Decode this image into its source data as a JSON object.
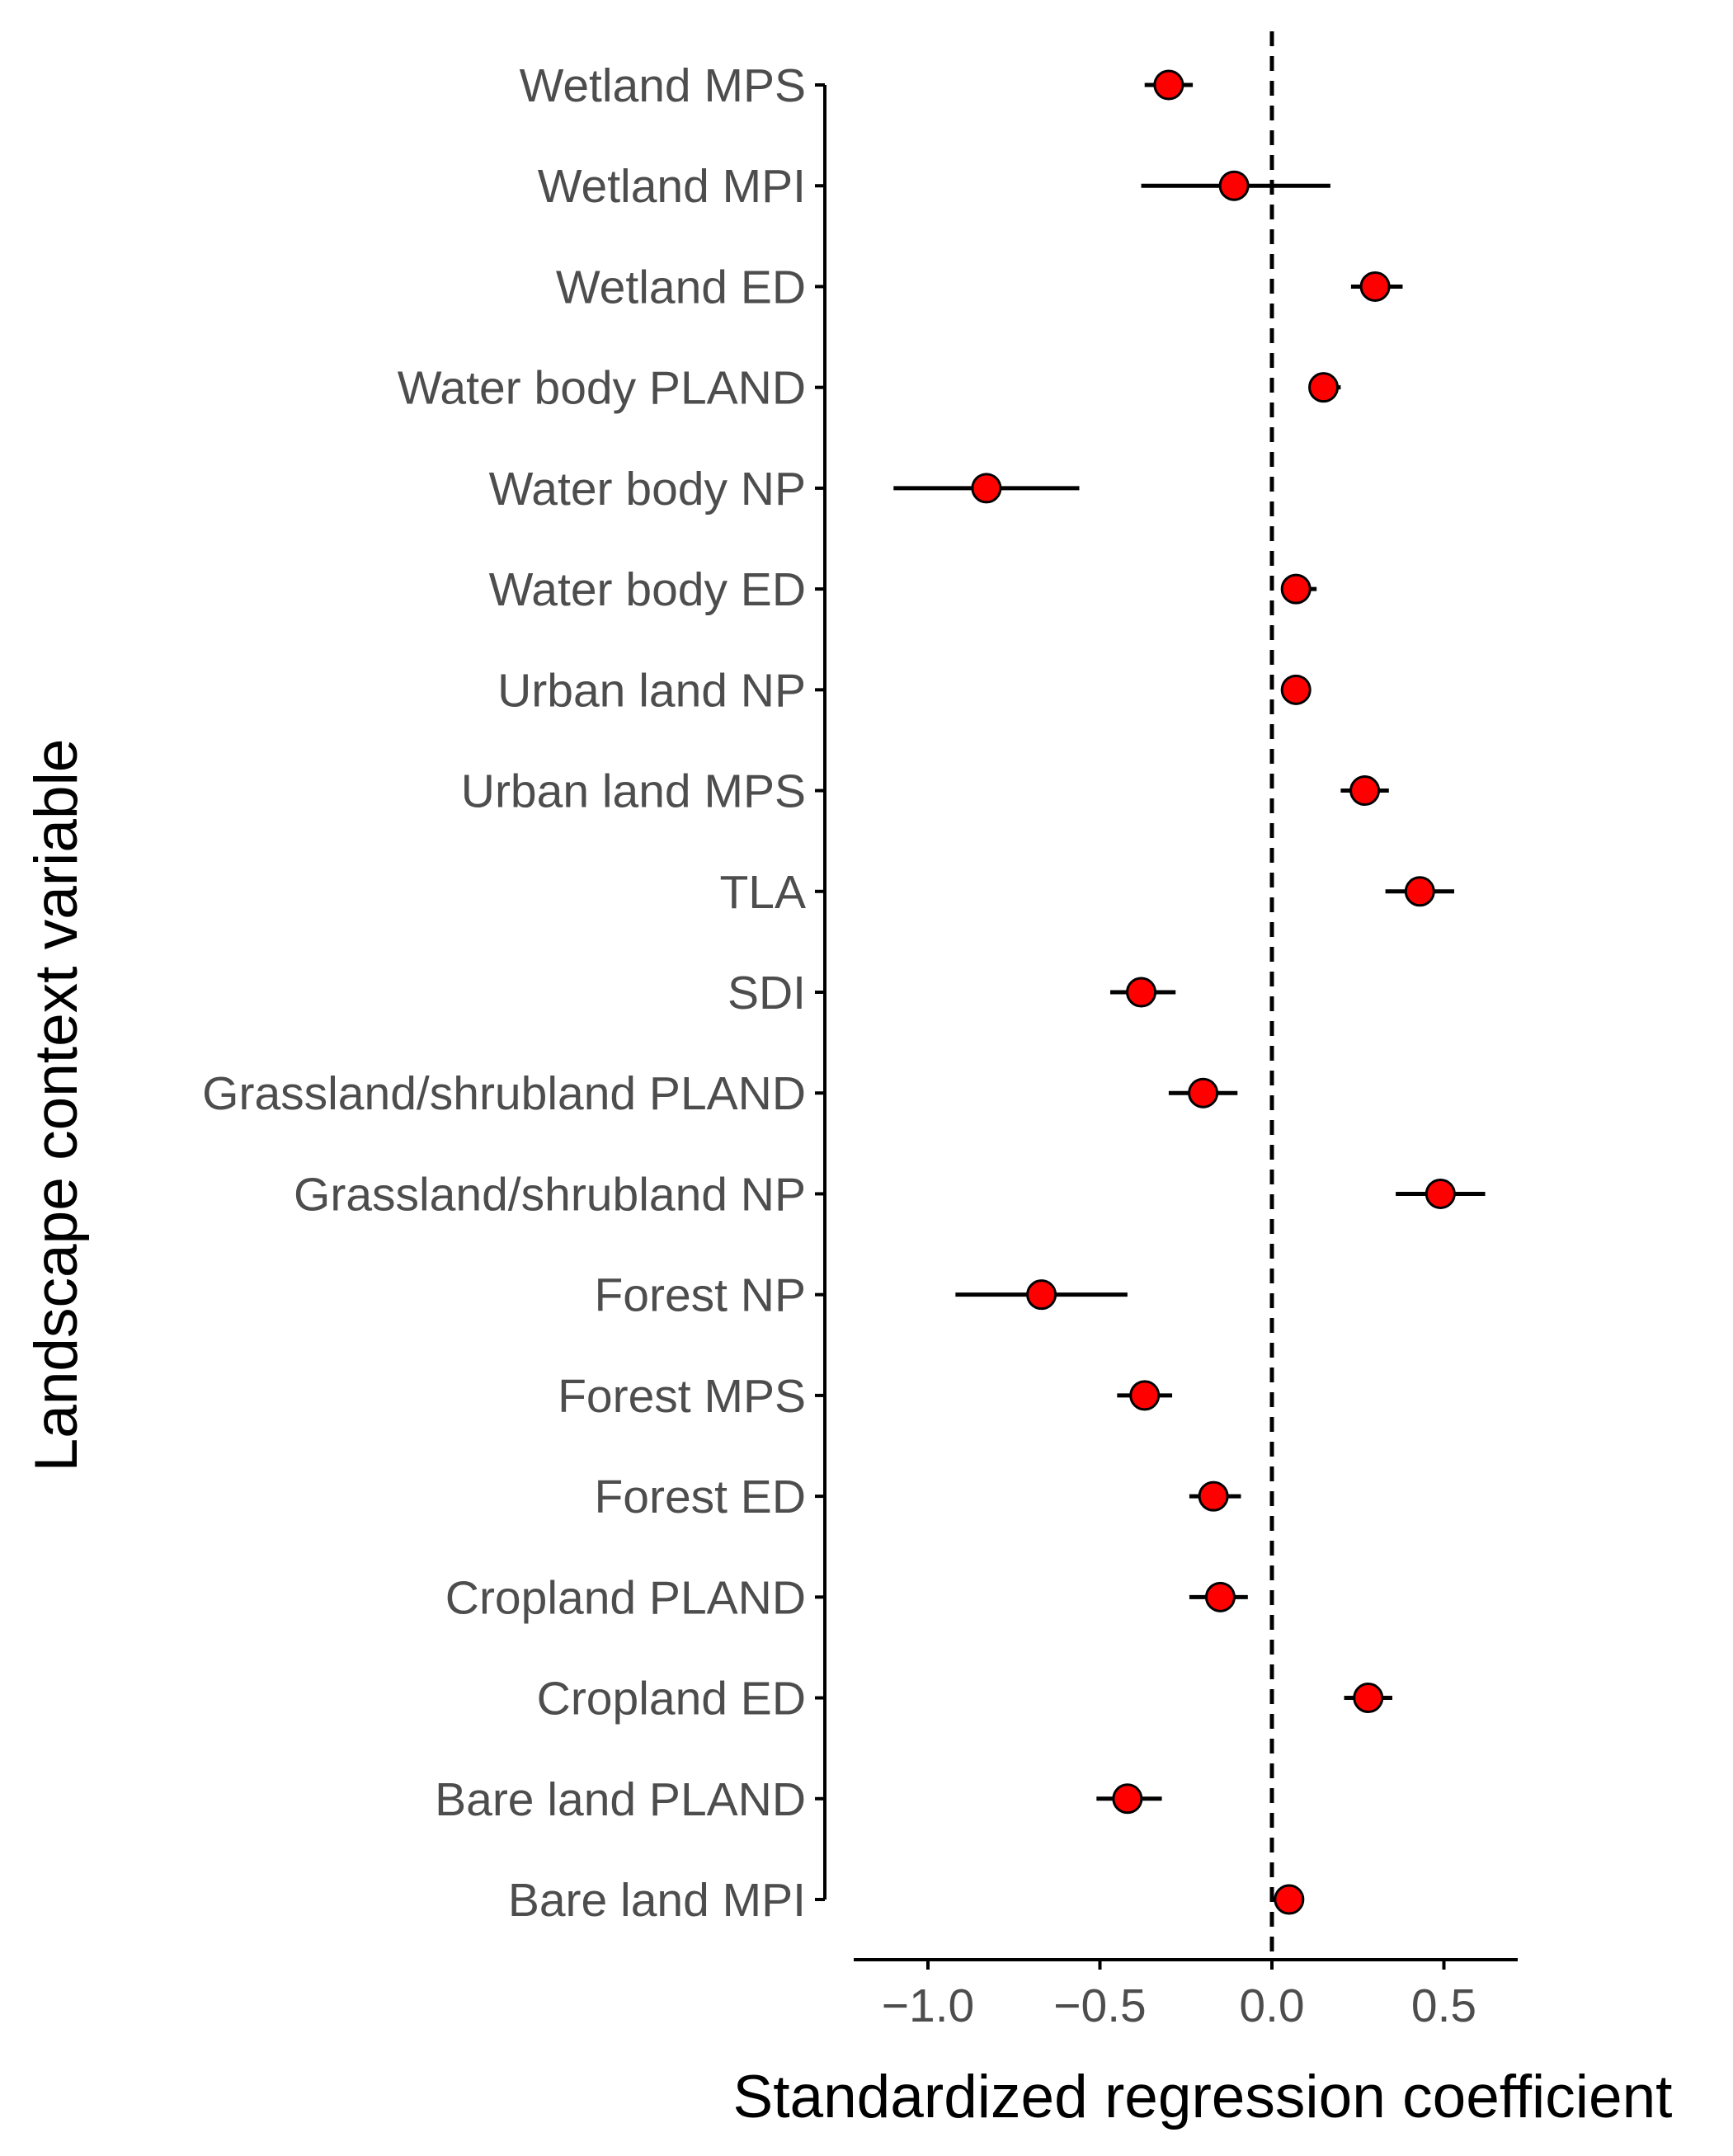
{
  "chart_data": {
    "type": "dot-errorbar",
    "title": "",
    "xlabel": "Standardized regression coefficient",
    "ylabel": "Landscape context variable",
    "xlim": [
      -1.2,
      0.7
    ],
    "xticks": [
      -1.0,
      -0.5,
      0.0,
      0.5
    ],
    "xtick_labels": [
      "−1.0",
      "−0.5",
      "0.0",
      "0.5"
    ],
    "reference_line": 0.0,
    "categories": [
      "Wetland MPS",
      "Wetland MPI",
      "Wetland ED",
      "Water body PLAND",
      "Water body NP",
      "Water body ED",
      "Urban land NP",
      "Urban land MPS",
      "TLA",
      "SDI",
      "Grassland/shrubland PLAND",
      "Grassland/shrubland NP",
      "Forest NP",
      "Forest MPS",
      "Forest ED",
      "Cropland PLAND",
      "Cropland ED",
      "Bare land PLAND",
      "Bare land MPI"
    ],
    "values": [
      -0.3,
      -0.11,
      0.3,
      0.15,
      -0.83,
      0.07,
      0.07,
      0.27,
      0.43,
      -0.38,
      -0.2,
      0.49,
      -0.67,
      -0.37,
      -0.17,
      -0.15,
      0.28,
      -0.42,
      0.05
    ],
    "ci_low": [
      -0.37,
      -0.38,
      0.23,
      0.11,
      -1.1,
      0.03,
      0.04,
      0.2,
      0.33,
      -0.47,
      -0.3,
      0.36,
      -0.92,
      -0.45,
      -0.24,
      -0.24,
      0.21,
      -0.51,
      0.02
    ],
    "ci_high": [
      -0.23,
      0.17,
      0.38,
      0.2,
      -0.56,
      0.13,
      0.1,
      0.34,
      0.53,
      -0.28,
      -0.1,
      0.62,
      -0.42,
      -0.29,
      -0.09,
      -0.07,
      0.35,
      -0.32,
      0.08
    ],
    "colors": {
      "point_fill": "#ff0000",
      "point_stroke": "#000000",
      "line": "#000000",
      "text": "#4d4d4d"
    }
  }
}
